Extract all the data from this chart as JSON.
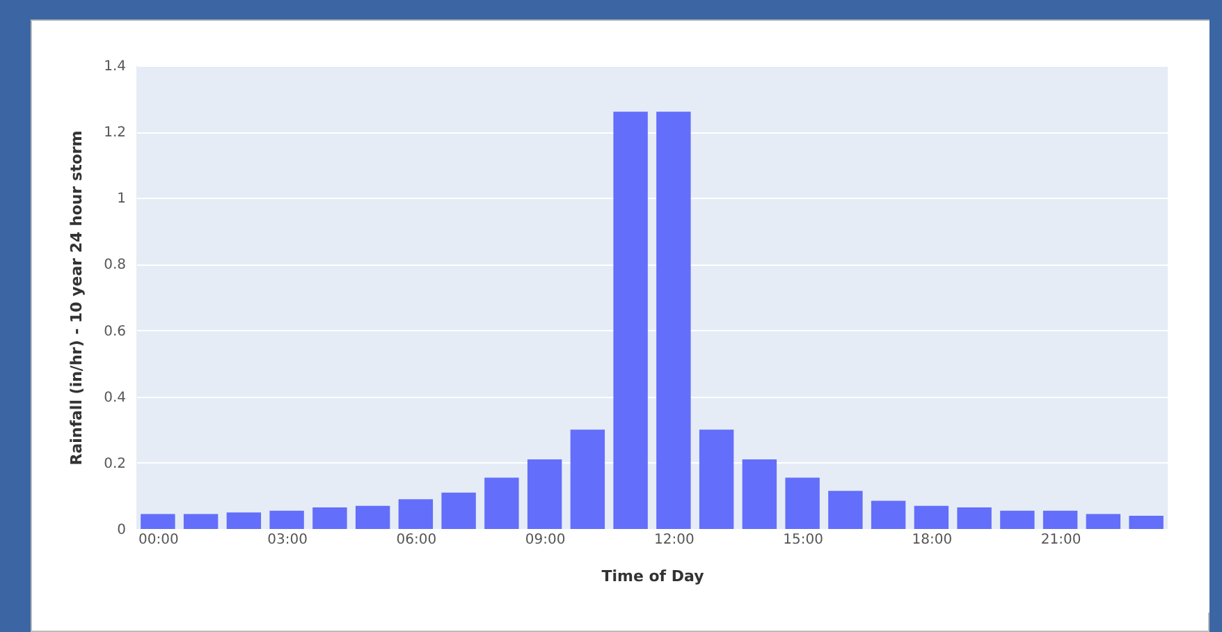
{
  "chart_data": {
    "type": "bar",
    "xlabel": "Time of Day",
    "ylabel": "Rainfall (in/hr) - 10 year 24 hour storm",
    "x": [
      0,
      1,
      2,
      3,
      4,
      5,
      6,
      7,
      8,
      9,
      10,
      11,
      12,
      13,
      14,
      15,
      16,
      17,
      18,
      19,
      20,
      21,
      22,
      23
    ],
    "values": [
      0.045,
      0.045,
      0.05,
      0.055,
      0.065,
      0.07,
      0.09,
      0.11,
      0.155,
      0.21,
      0.3,
      1.26,
      1.26,
      0.3,
      0.21,
      0.155,
      0.115,
      0.085,
      0.07,
      0.065,
      0.055,
      0.055,
      0.045,
      0.04
    ],
    "color": "#636efa",
    "xlim": [
      -0.5,
      23.5
    ],
    "xticks": [
      {
        "value": 0,
        "label": "00:00"
      },
      {
        "value": 3,
        "label": "03:00"
      },
      {
        "value": 6,
        "label": "06:00"
      },
      {
        "value": 9,
        "label": "09:00"
      },
      {
        "value": 12,
        "label": "12:00"
      },
      {
        "value": 15,
        "label": "15:00"
      },
      {
        "value": 18,
        "label": "18:00"
      },
      {
        "value": 21,
        "label": "21:00"
      }
    ],
    "ylim": [
      0,
      1.4
    ],
    "yticks": [
      0,
      0.2,
      0.4,
      0.6,
      0.8,
      1,
      1.2,
      1.4
    ],
    "grid": "y"
  }
}
